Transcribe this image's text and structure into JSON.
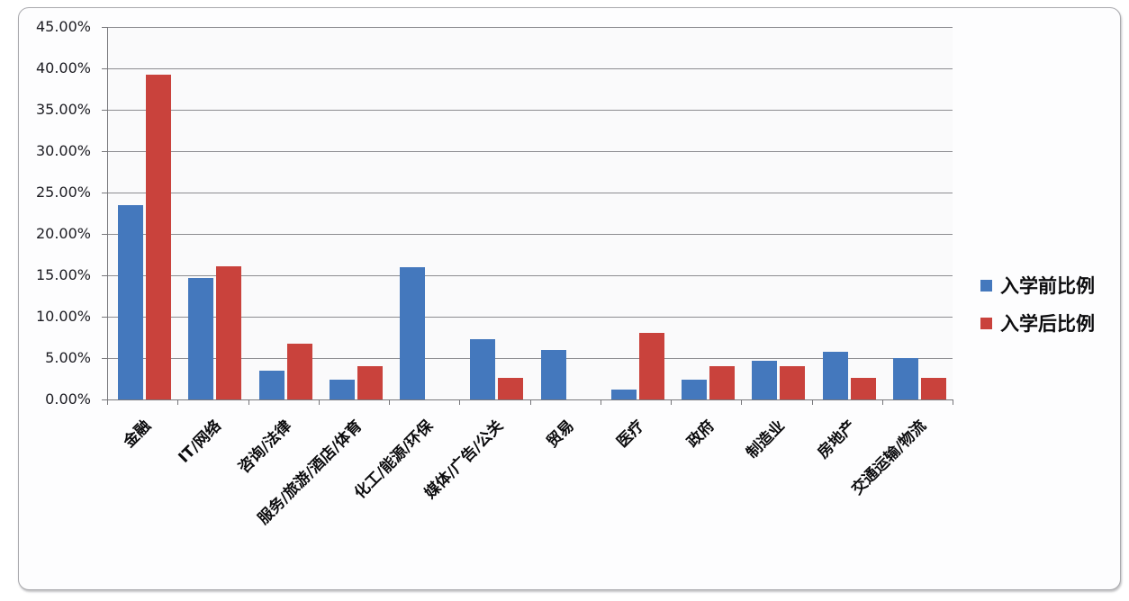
{
  "chart_data": {
    "type": "bar",
    "title": "",
    "xlabel": "",
    "ylabel": "",
    "categories": [
      "金融",
      "IT/网络",
      "咨询/法律",
      "服务/旅游/酒店/体育",
      "化工/能源/环保",
      "媒体/广告/公关",
      "贸易",
      "医疗",
      "政府",
      "制造业",
      "房地产",
      "交通运输/物流"
    ],
    "series": [
      {
        "name": "入学前比例",
        "color": "#4478BD",
        "values": [
          23.5,
          14.7,
          3.5,
          2.4,
          16.0,
          7.3,
          6.0,
          1.2,
          2.4,
          4.7,
          5.8,
          5.0
        ]
      },
      {
        "name": "入学后比例",
        "color": "#C9423C",
        "values": [
          39.2,
          16.1,
          6.7,
          4.0,
          0,
          2.6,
          0,
          8.0,
          4.0,
          4.0,
          2.6,
          2.6
        ]
      }
    ],
    "ylim": [
      0,
      45
    ],
    "ytick_step": 5,
    "ytick_labels": [
      "45.00%",
      "40.00%",
      "35.00%",
      "30.00%",
      "25.00%",
      "20.00%",
      "15.00%",
      "10.00%",
      "5.00%",
      "0.00%"
    ],
    "grid": true,
    "legend_position": "right",
    "colors": {
      "plot_background": "#fafafb",
      "frame_background": "#fdfdfe",
      "gridline": "#8c8c90",
      "axis": "#77777b"
    }
  }
}
